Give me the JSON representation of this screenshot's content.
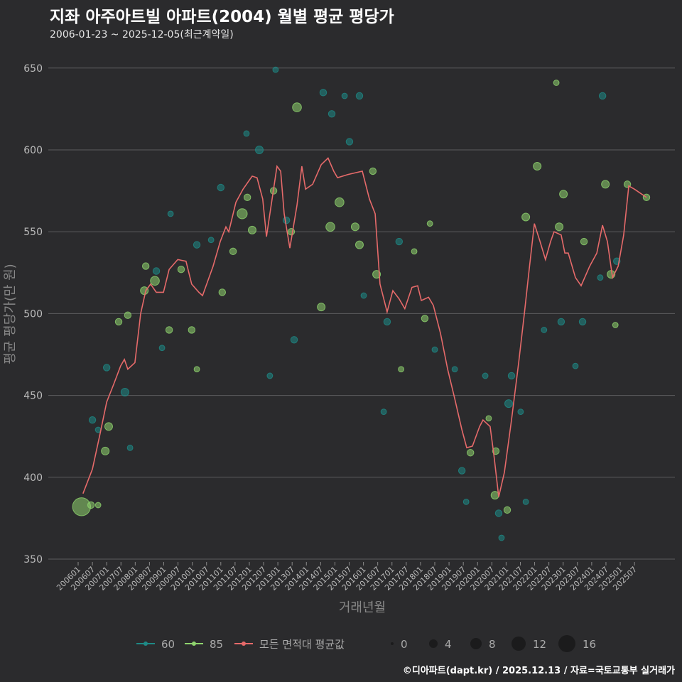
{
  "title": "지좌 아주아트빌 아파트(2004) 월별 평균 평당가",
  "subtitle": "2006-01-23 ~ 2025-12-05(최근계약일)",
  "footer": "©디아파트(dapt.kr) / 2025.12.13 / 자료=국토교통부 실거래가",
  "colors": {
    "s60": "#1e8a86",
    "s85": "#8fd46e",
    "avg": "#e66a6a"
  },
  "chart_data": {
    "type": "line+scatter",
    "xlabel": "거래년월",
    "ylabel": "평균 평당가(만 원)",
    "ylim": [
      350,
      650
    ],
    "yticks": [
      350,
      400,
      450,
      500,
      550,
      600,
      650
    ],
    "xticks": [
      "200601",
      "200607",
      "200701",
      "200707",
      "200801",
      "200807",
      "200901",
      "200907",
      "201001",
      "201007",
      "201101",
      "201107",
      "201201",
      "201207",
      "201301",
      "201307",
      "201401",
      "201407",
      "201501",
      "201507",
      "201601",
      "201607",
      "201701",
      "201707",
      "201801",
      "201807",
      "201901",
      "201907",
      "202001",
      "202007",
      "202101",
      "202107",
      "202201",
      "202207",
      "202301",
      "202307",
      "202401",
      "202407",
      "202501",
      "202507"
    ],
    "legend": {
      "series": [
        "60",
        "85",
        "모든 면적대 평균값"
      ],
      "size_title": "",
      "sizes": [
        "0",
        "4",
        "8",
        "12",
        "16"
      ]
    },
    "avg_line": [
      [
        2006.17,
        390
      ],
      [
        2006.5,
        405
      ],
      [
        2006.75,
        425
      ],
      [
        2007.0,
        446
      ],
      [
        2007.25,
        457
      ],
      [
        2007.49,
        468
      ],
      [
        2007.62,
        472
      ],
      [
        2007.74,
        466
      ],
      [
        2007.99,
        470
      ],
      [
        2008.19,
        500
      ],
      [
        2008.37,
        514
      ],
      [
        2008.54,
        518
      ],
      [
        2008.74,
        513
      ],
      [
        2008.99,
        513
      ],
      [
        2009.19,
        527
      ],
      [
        2009.49,
        533
      ],
      [
        2009.78,
        532
      ],
      [
        2009.98,
        518
      ],
      [
        2010.23,
        513
      ],
      [
        2010.36,
        511
      ],
      [
        2010.73,
        529
      ],
      [
        2010.98,
        544
      ],
      [
        2011.18,
        553
      ],
      [
        2011.28,
        550
      ],
      [
        2011.53,
        568
      ],
      [
        2011.78,
        576
      ],
      [
        2012.1,
        584
      ],
      [
        2012.27,
        583
      ],
      [
        2012.47,
        570
      ],
      [
        2012.6,
        547
      ],
      [
        2012.72,
        561
      ],
      [
        2012.97,
        590
      ],
      [
        2013.1,
        587
      ],
      [
        2013.22,
        561
      ],
      [
        2013.42,
        540
      ],
      [
        2013.67,
        566
      ],
      [
        2013.84,
        590
      ],
      [
        2013.97,
        576
      ],
      [
        2014.22,
        579
      ],
      [
        2014.52,
        591
      ],
      [
        2014.76,
        595
      ],
      [
        2014.96,
        587
      ],
      [
        2015.09,
        583
      ],
      [
        2015.46,
        585
      ],
      [
        2015.96,
        587
      ],
      [
        2016.21,
        570
      ],
      [
        2016.41,
        561
      ],
      [
        2016.58,
        518
      ],
      [
        2016.83,
        501
      ],
      [
        2017.03,
        514
      ],
      [
        2017.25,
        509
      ],
      [
        2017.45,
        503
      ],
      [
        2017.7,
        516
      ],
      [
        2017.9,
        517
      ],
      [
        2018.03,
        508
      ],
      [
        2018.28,
        510
      ],
      [
        2018.45,
        505
      ],
      [
        2018.7,
        488
      ],
      [
        2018.95,
        466
      ],
      [
        2019.2,
        448
      ],
      [
        2019.45,
        429
      ],
      [
        2019.62,
        418
      ],
      [
        2019.82,
        419
      ],
      [
        2020.07,
        431
      ],
      [
        2020.19,
        435
      ],
      [
        2020.44,
        431
      ],
      [
        2020.57,
        414
      ],
      [
        2020.74,
        388
      ],
      [
        2020.94,
        403
      ],
      [
        2021.19,
        435
      ],
      [
        2021.44,
        470
      ],
      [
        2021.64,
        500
      ],
      [
        2021.81,
        527
      ],
      [
        2021.99,
        555
      ],
      [
        2022.19,
        544
      ],
      [
        2022.38,
        533
      ],
      [
        2022.56,
        544
      ],
      [
        2022.68,
        550
      ],
      [
        2022.93,
        548
      ],
      [
        2023.06,
        537
      ],
      [
        2023.18,
        537
      ],
      [
        2023.43,
        522
      ],
      [
        2023.63,
        517
      ],
      [
        2023.93,
        529
      ],
      [
        2024.18,
        537
      ],
      [
        2024.38,
        554
      ],
      [
        2024.55,
        544
      ],
      [
        2024.73,
        522
      ],
      [
        2024.93,
        529
      ],
      [
        2025.12,
        548
      ],
      [
        2025.3,
        578
      ],
      [
        2025.5,
        576
      ],
      [
        2025.92,
        571
      ]
    ],
    "points": [
      [
        2006.12,
        382,
        14,
        "85"
      ],
      [
        2006.45,
        383,
        4,
        "85"
      ],
      [
        2006.7,
        383,
        3,
        "85"
      ],
      [
        2006.5,
        435,
        4,
        "60"
      ],
      [
        2006.7,
        429,
        3,
        "60"
      ],
      [
        2006.95,
        416,
        5,
        "85"
      ],
      [
        2007.07,
        431,
        5,
        "85"
      ],
      [
        2007.0,
        467,
        4,
        "60"
      ],
      [
        2007.42,
        495,
        4,
        "85"
      ],
      [
        2007.74,
        499,
        4,
        "85"
      ],
      [
        2007.64,
        452,
        5,
        "60"
      ],
      [
        2007.82,
        418,
        3,
        "60"
      ],
      [
        2008.32,
        514,
        5,
        "85"
      ],
      [
        2008.37,
        529,
        4,
        "85"
      ],
      [
        2008.74,
        526,
        4,
        "60"
      ],
      [
        2008.69,
        520,
        6,
        "85"
      ],
      [
        2008.94,
        479,
        3,
        "60"
      ],
      [
        2009.19,
        490,
        4,
        "85"
      ],
      [
        2009.24,
        561,
        3,
        "60"
      ],
      [
        2009.61,
        527,
        4,
        "85"
      ],
      [
        2009.98,
        490,
        4,
        "85"
      ],
      [
        2010.16,
        466,
        3,
        "85"
      ],
      [
        2010.16,
        542,
        4,
        "60"
      ],
      [
        2010.66,
        545,
        3,
        "60"
      ],
      [
        2011.05,
        513,
        4,
        "85"
      ],
      [
        2011.0,
        577,
        4,
        "60"
      ],
      [
        2011.43,
        538,
        4,
        "85"
      ],
      [
        2011.75,
        561,
        7,
        "85"
      ],
      [
        2011.93,
        571,
        4,
        "85"
      ],
      [
        2012.1,
        551,
        5,
        "85"
      ],
      [
        2011.9,
        610,
        3,
        "60"
      ],
      [
        2012.35,
        600,
        5,
        "60"
      ],
      [
        2012.92,
        649,
        3,
        "60"
      ],
      [
        2012.72,
        462,
        3,
        "60"
      ],
      [
        2012.85,
        575,
        4,
        "85"
      ],
      [
        2013.3,
        557,
        4,
        "60"
      ],
      [
        2013.67,
        626,
        6,
        "85"
      ],
      [
        2013.47,
        550,
        4,
        "85"
      ],
      [
        2013.57,
        484,
        4,
        "60"
      ],
      [
        2014.59,
        635,
        4,
        "60"
      ],
      [
        2014.52,
        504,
        5,
        "85"
      ],
      [
        2014.84,
        553,
        6,
        "85"
      ],
      [
        2014.89,
        622,
        4,
        "60"
      ],
      [
        2015.16,
        568,
        6,
        "85"
      ],
      [
        2015.34,
        633,
        3,
        "60"
      ],
      [
        2015.51,
        605,
        4,
        "60"
      ],
      [
        2015.86,
        633,
        4,
        "60"
      ],
      [
        2015.71,
        553,
        5,
        "85"
      ],
      [
        2015.86,
        542,
        5,
        "85"
      ],
      [
        2016.33,
        587,
        4,
        "85"
      ],
      [
        2016.01,
        511,
        3,
        "60"
      ],
      [
        2016.71,
        440,
        3,
        "60"
      ],
      [
        2016.46,
        524,
        5,
        "85"
      ],
      [
        2016.83,
        495,
        4,
        "60"
      ],
      [
        2017.25,
        544,
        4,
        "60"
      ],
      [
        2017.78,
        538,
        3,
        "85"
      ],
      [
        2018.33,
        555,
        3,
        "85"
      ],
      [
        2017.32,
        466,
        3,
        "85"
      ],
      [
        2018.5,
        478,
        3,
        "60"
      ],
      [
        2018.15,
        497,
        4,
        "85"
      ],
      [
        2019.2,
        466,
        3,
        "60"
      ],
      [
        2019.45,
        404,
        4,
        "60"
      ],
      [
        2019.6,
        385,
        3,
        "60"
      ],
      [
        2019.75,
        415,
        4,
        "85"
      ],
      [
        2020.39,
        436,
        3,
        "85"
      ],
      [
        2020.27,
        462,
        3,
        "60"
      ],
      [
        2020.64,
        416,
        4,
        "85"
      ],
      [
        2020.61,
        389,
        5,
        "85"
      ],
      [
        2020.74,
        378,
        4,
        "60"
      ],
      [
        2020.84,
        363,
        3,
        "60"
      ],
      [
        2021.04,
        380,
        4,
        "85"
      ],
      [
        2021.09,
        445,
        5,
        "60"
      ],
      [
        2021.19,
        462,
        4,
        "60"
      ],
      [
        2021.51,
        440,
        3,
        "60"
      ],
      [
        2021.69,
        385,
        3,
        "60"
      ],
      [
        2021.69,
        559,
        5,
        "85"
      ],
      [
        2022.09,
        590,
        5,
        "85"
      ],
      [
        2022.33,
        490,
        3,
        "60"
      ],
      [
        2022.76,
        641,
        3,
        "85"
      ],
      [
        2023.01,
        573,
        5,
        "85"
      ],
      [
        2022.86,
        553,
        5,
        "85"
      ],
      [
        2022.93,
        495,
        4,
        "60"
      ],
      [
        2023.43,
        468,
        3,
        "60"
      ],
      [
        2023.73,
        544,
        4,
        "85"
      ],
      [
        2023.68,
        495,
        4,
        "60"
      ],
      [
        2024.38,
        633,
        4,
        "60"
      ],
      [
        2024.48,
        579,
        5,
        "85"
      ],
      [
        2024.68,
        524,
        5,
        "85"
      ],
      [
        2024.83,
        493,
        3,
        "85"
      ],
      [
        2024.3,
        522,
        3,
        "60"
      ],
      [
        2024.88,
        532,
        4,
        "60"
      ],
      [
        2025.25,
        579,
        4,
        "85"
      ],
      [
        2025.92,
        571,
        4,
        "85"
      ]
    ]
  }
}
